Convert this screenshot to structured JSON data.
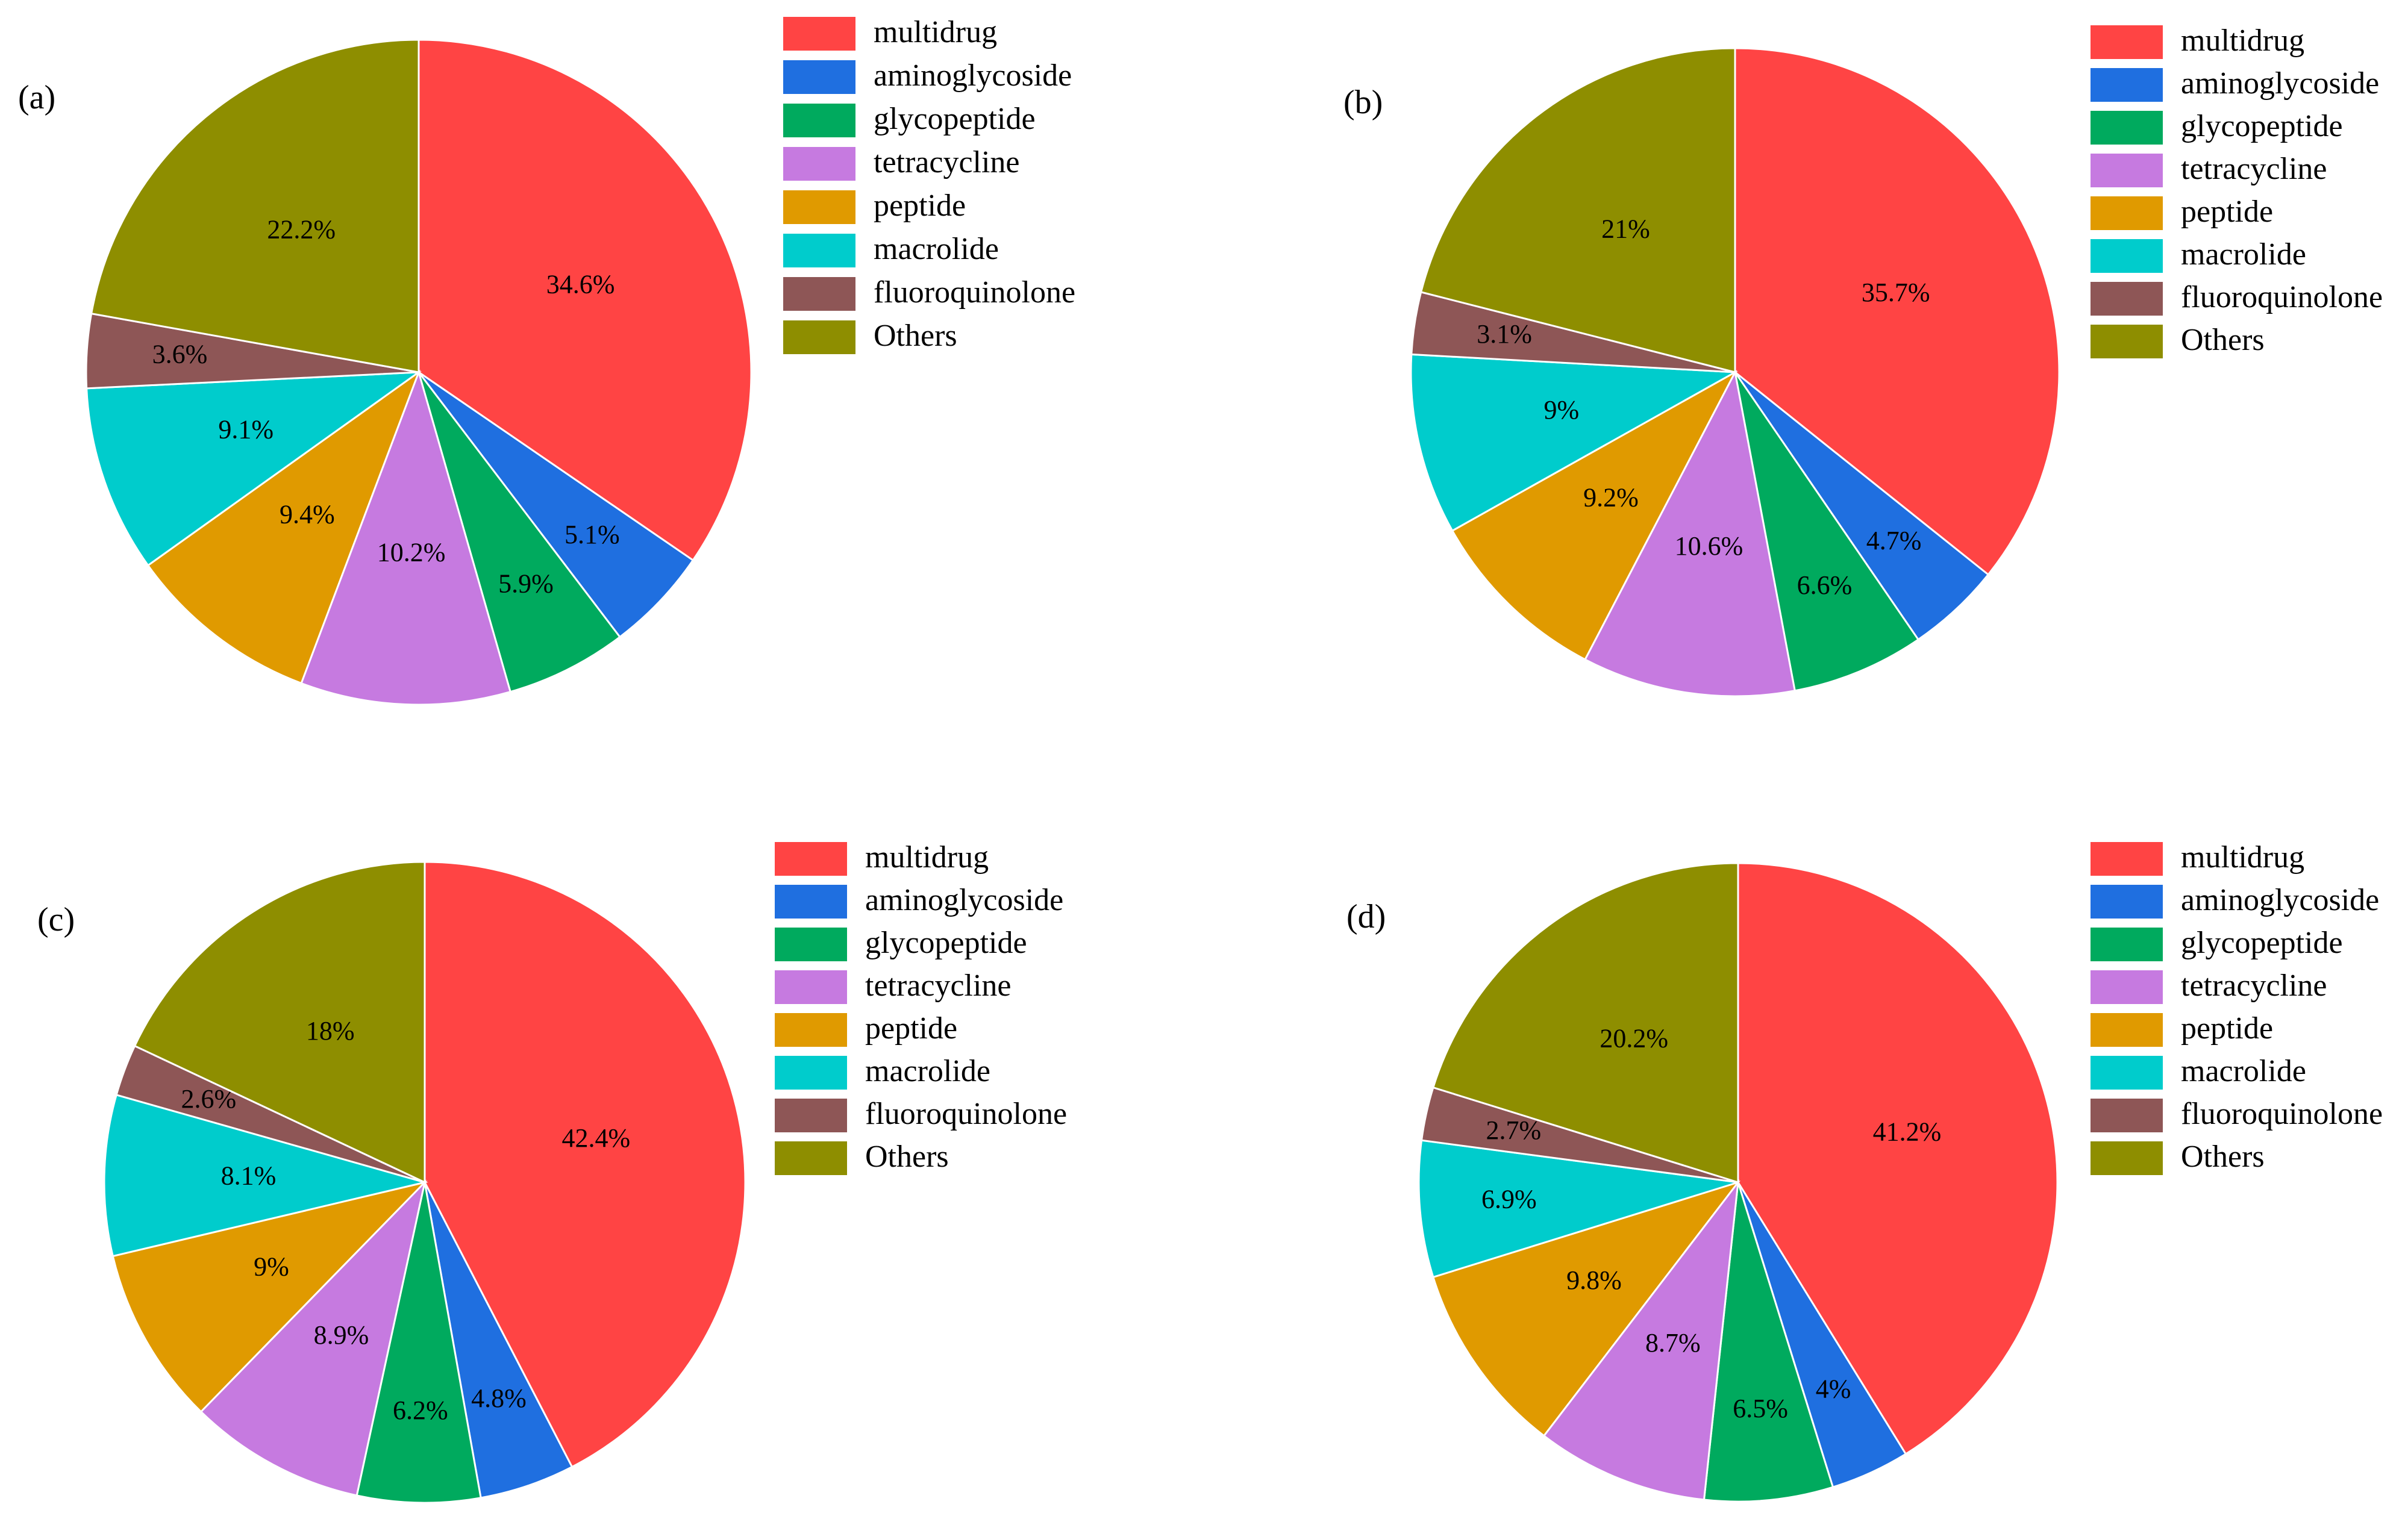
{
  "chart_data": [
    {
      "type": "pie",
      "panel": "(a)",
      "categories": [
        "multidrug",
        "aminoglycoside",
        "glycopeptide",
        "tetracycline",
        "peptide",
        "macrolide",
        "fluoroquinolone",
        "Others"
      ],
      "values": [
        34.6,
        5.1,
        5.9,
        10.2,
        9.4,
        9.1,
        3.6,
        22.2
      ],
      "labels": [
        "34.6%",
        "5.1%",
        "5.9%",
        "10.2%",
        "9.4%",
        "9.1%",
        "3.6%",
        "22.2%"
      ]
    },
    {
      "type": "pie",
      "panel": "(b)",
      "categories": [
        "multidrug",
        "aminoglycoside",
        "glycopeptide",
        "tetracycline",
        "peptide",
        "macrolide",
        "fluoroquinolone",
        "Others"
      ],
      "values": [
        35.7,
        4.7,
        6.6,
        10.6,
        9.2,
        9,
        3.1,
        21
      ],
      "labels": [
        "35.7%",
        "4.7%",
        "6.6%",
        "10.6%",
        "9.2%",
        "9%",
        "3.1%",
        "21%"
      ]
    },
    {
      "type": "pie",
      "panel": "(c)",
      "categories": [
        "multidrug",
        "aminoglycoside",
        "glycopeptide",
        "tetracycline",
        "peptide",
        "macrolide",
        "fluoroquinolone",
        "Others"
      ],
      "values": [
        42.4,
        4.8,
        6.2,
        8.9,
        9,
        8.1,
        2.6,
        18
      ],
      "labels": [
        "42.4%",
        "4.8%",
        "6.2%",
        "8.9%",
        "9%",
        "8.1%",
        "2.6%",
        "18%"
      ]
    },
    {
      "type": "pie",
      "panel": "(d)",
      "categories": [
        "multidrug",
        "aminoglycoside",
        "glycopeptide",
        "tetracycline",
        "peptide",
        "macrolide",
        "fluoroquinolone",
        "Others"
      ],
      "values": [
        41.2,
        4,
        6.5,
        8.7,
        9.8,
        6.9,
        2.7,
        20.2
      ],
      "labels": [
        "41.2%",
        "4%",
        "6.5%",
        "8.7%",
        "9.8%",
        "6.9%",
        "2.7%",
        "20.2%"
      ]
    }
  ],
  "legend": {
    "items": [
      "multidrug",
      "aminoglycoside",
      "glycopeptide",
      "tetracycline",
      "peptide",
      "macrolide",
      "fluoroquinolone",
      "Others"
    ]
  },
  "colors": {
    "multidrug": "#FF4444",
    "aminoglycoside": "#1F6FE0",
    "glycopeptide": "#00AA5E",
    "tetracycline": "#C67AE0",
    "peptide": "#E09A00",
    "macrolide": "#00CCCC",
    "fluoroquinolone": "#8E5656",
    "Others": "#8E8E00"
  }
}
